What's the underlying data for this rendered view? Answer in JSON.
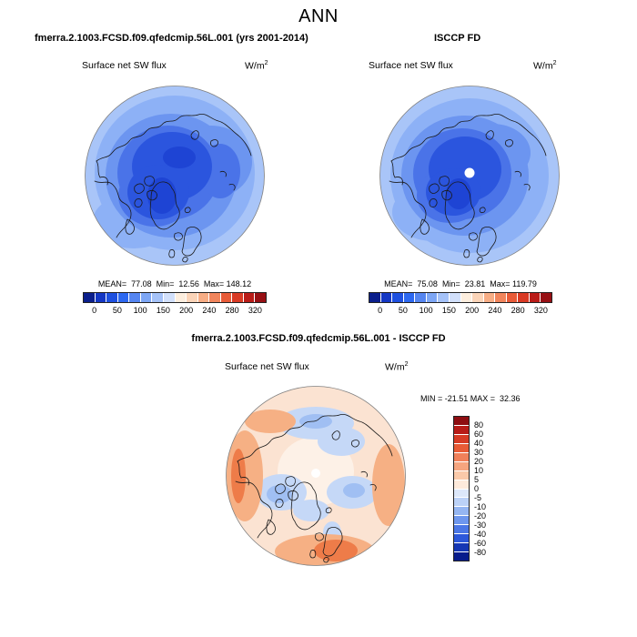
{
  "page": {
    "title": "ANN"
  },
  "panels": {
    "model": {
      "title": "fmerra.2.1003.FCSD.f09.qfedcmip.56L.001 (yrs 2001-2014)",
      "field_label": "Surface net SW flux",
      "units_base": "W/m",
      "units_exp": "2",
      "stats": "MEAN=  77.08  Min=  12.56  Max= 148.12"
    },
    "obs": {
      "title": "ISCCP FD",
      "field_label": "Surface net SW flux",
      "units_base": "W/m",
      "units_exp": "2",
      "stats": "MEAN=  75.08  Min=  23.81  Max= 119.79"
    },
    "diff": {
      "title": "fmerra.2.1003.FCSD.f09.qfedcmip.56L.001 - ISCCP FD",
      "field_label": "Surface net SW flux",
      "units_base": "W/m",
      "units_exp": "2",
      "minmax": "MIN = -21.51 MAX =  32.36"
    }
  },
  "colorbars": {
    "flux_ticks": [
      "0",
      "50",
      "100",
      "150",
      "200",
      "240",
      "280",
      "320"
    ],
    "diff_ticks": [
      "80",
      "60",
      "40",
      "30",
      "20",
      "10",
      "5",
      "0",
      "-5",
      "-10",
      "-20",
      "-30",
      "-40",
      "-60",
      "-80"
    ]
  },
  "palettes": {
    "flux": [
      "#0b1f8c",
      "#1437c4",
      "#1e50e0",
      "#2d68f0",
      "#5585f0",
      "#7da6f5",
      "#a5c2f8",
      "#d2e0fb",
      "#fdeede",
      "#fbd4b8",
      "#f7ad85",
      "#f1855c",
      "#e85b38",
      "#d93a24",
      "#ba1c18",
      "#971014"
    ],
    "diff": [
      "#8e0e12",
      "#b71c18",
      "#d63b25",
      "#e85b36",
      "#f0805a",
      "#f6a57f",
      "#fac9a9",
      "#fdeadb",
      "#dde8fa",
      "#bcd2f7",
      "#95b6f2",
      "#6e97ee",
      "#4b77e6",
      "#2c58da",
      "#1537b4",
      "#081c8c"
    ]
  },
  "chart_data": [
    {
      "type": "heatmap",
      "subtype": "polar-stereographic-map",
      "region": "Arctic / Northern Hemisphere",
      "title": "fmerra.2.1003.FCSD.f09.qfedcmip.56L.001 (yrs 2001-2014)",
      "variable": "Surface net SW flux",
      "units": "W/m^2",
      "stats": {
        "mean": 77.08,
        "min": 12.56,
        "max": 148.12
      },
      "colorbar": {
        "orientation": "horizontal",
        "tick_values": [
          0,
          50,
          100,
          150,
          200,
          240,
          280,
          320
        ],
        "n_colors": 16,
        "scheme": "blue-to-red"
      }
    },
    {
      "type": "heatmap",
      "subtype": "polar-stereographic-map",
      "region": "Arctic / Northern Hemisphere",
      "title": "ISCCP FD",
      "variable": "Surface net SW flux",
      "units": "W/m^2",
      "stats": {
        "mean": 75.08,
        "min": 23.81,
        "max": 119.79
      },
      "notes": "white circle at pole indicates missing data",
      "colorbar": {
        "orientation": "horizontal",
        "tick_values": [
          0,
          50,
          100,
          150,
          200,
          240,
          280,
          320
        ],
        "n_colors": 16,
        "scheme": "blue-to-red"
      }
    },
    {
      "type": "heatmap",
      "subtype": "polar-stereographic-map",
      "region": "Arctic / Northern Hemisphere",
      "title": "fmerra.2.1003.FCSD.f09.qfedcmip.56L.001 - ISCCP FD",
      "variable": "Surface net SW flux (difference)",
      "units": "W/m^2",
      "stats": {
        "min": -21.51,
        "max": 32.36
      },
      "notes": "white circle at pole indicates missing data",
      "colorbar": {
        "orientation": "vertical",
        "tick_values": [
          80,
          60,
          40,
          30,
          20,
          10,
          5,
          0,
          -5,
          -10,
          -20,
          -30,
          -40,
          -60,
          -80
        ],
        "n_colors": 16,
        "scheme": "red-to-blue"
      }
    }
  ]
}
